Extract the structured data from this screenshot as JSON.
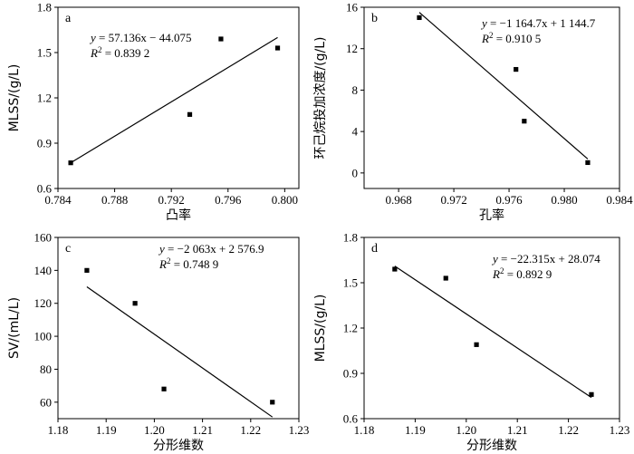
{
  "chart_data": [
    {
      "type": "scatter",
      "panel": "a",
      "xlabel": "凸率",
      "ylabel": "MLSS/(g/L)",
      "xlim": [
        0.784,
        0.801
      ],
      "ylim": [
        0.6,
        1.8
      ],
      "xticks": [
        "0.784",
        "0.788",
        "0.792",
        "0.796",
        "0.800"
      ],
      "yticks": [
        "0.6",
        "0.9",
        "1.2",
        "1.5",
        "1.8"
      ],
      "points": [
        {
          "x": 0.7849,
          "y": 0.77
        },
        {
          "x": 0.7933,
          "y": 1.09
        },
        {
          "x": 0.7955,
          "y": 1.59
        },
        {
          "x": 0.7995,
          "y": 1.53
        }
      ],
      "fit_line": {
        "x": [
          0.7849,
          0.7995
        ],
        "y": [
          0.77,
          1.6
        ]
      },
      "equation_y": "y",
      "equation_rhs": " = 57.136x − 44.075",
      "r2_label": "R",
      "r2_sup": "2",
      "r2_value": " = 0.839 2",
      "legend_position": "top-left"
    },
    {
      "type": "scatter",
      "panel": "b",
      "xlabel": "孔率",
      "ylabel": "环己烷投加浓度/(g/L)",
      "xlim": [
        0.9655,
        0.984
      ],
      "ylim": [
        -1.5,
        16
      ],
      "xticks": [
        "0.968",
        "0.972",
        "0.976",
        "0.980",
        "0.984"
      ],
      "yticks": [
        "0",
        "4",
        "8",
        "12",
        "16"
      ],
      "points": [
        {
          "x": 0.9695,
          "y": 15
        },
        {
          "x": 0.9765,
          "y": 10
        },
        {
          "x": 0.9771,
          "y": 5
        },
        {
          "x": 0.9817,
          "y": 1
        }
      ],
      "fit_line": {
        "x": [
          0.9695,
          0.9817
        ],
        "y": [
          15.5,
          1.35
        ]
      },
      "equation_y": "y",
      "equation_rhs": " = −1 164.7x + 1 144.7",
      "r2_label": "R",
      "r2_sup": "2",
      "r2_value": " = 0.910 5",
      "legend_position": "top-right"
    },
    {
      "type": "scatter",
      "panel": "c",
      "xlabel": "分形维数",
      "ylabel": "SV/(mL/L)",
      "xlim": [
        1.18,
        1.23
      ],
      "ylim": [
        50,
        160
      ],
      "xticks": [
        "1.18",
        "1.19",
        "1.20",
        "1.21",
        "1.22",
        "1.23"
      ],
      "yticks": [
        "60",
        "80",
        "100",
        "120",
        "140",
        "160"
      ],
      "points": [
        {
          "x": 1.186,
          "y": 140
        },
        {
          "x": 1.196,
          "y": 120
        },
        {
          "x": 1.202,
          "y": 68
        },
        {
          "x": 1.2245,
          "y": 60
        }
      ],
      "fit_line": {
        "x": [
          1.186,
          1.2245
        ],
        "y": [
          130,
          51
        ]
      },
      "equation_y": "y",
      "equation_rhs": " = −2 063x + 2 576.9",
      "r2_label": "R",
      "r2_sup": "2",
      "r2_value": " = 0.748 9",
      "legend_position": "top-right"
    },
    {
      "type": "scatter",
      "panel": "d",
      "xlabel": "分形维数",
      "ylabel": "MLSS/(g/L)",
      "xlim": [
        1.18,
        1.23
      ],
      "ylim": [
        0.6,
        1.8
      ],
      "xticks": [
        "1.18",
        "1.19",
        "1.20",
        "1.21",
        "1.22",
        "1.23"
      ],
      "yticks": [
        "0.6",
        "0.9",
        "1.2",
        "1.5",
        "1.8"
      ],
      "points": [
        {
          "x": 1.186,
          "y": 1.59
        },
        {
          "x": 1.196,
          "y": 1.53
        },
        {
          "x": 1.202,
          "y": 1.09
        },
        {
          "x": 1.2245,
          "y": 0.76
        }
      ],
      "fit_line": {
        "x": [
          1.186,
          1.2245
        ],
        "y": [
          1.61,
          0.74
        ]
      },
      "equation_y": "y",
      "equation_rhs": " = −22.315x + 28.074",
      "r2_label": "R",
      "r2_sup": "2",
      "r2_value": " = 0.892 9",
      "legend_position": "top-right"
    }
  ]
}
